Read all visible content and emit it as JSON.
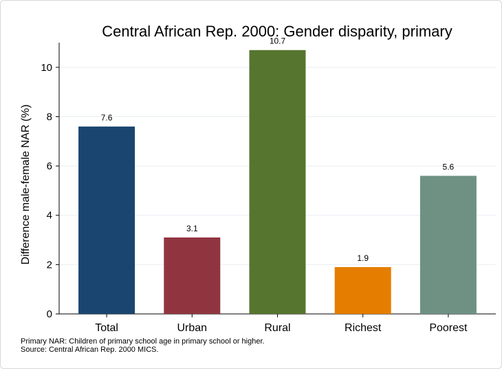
{
  "chart_data": {
    "type": "bar",
    "title": "Central African Rep. 2000: Gender disparity, primary",
    "ylabel": "Difference male-female NAR (%)",
    "xlabel": "",
    "categories": [
      "Total",
      "Urban",
      "Rural",
      "Richest",
      "Poorest"
    ],
    "values": [
      7.6,
      3.1,
      10.7,
      1.9,
      5.6
    ],
    "data_labels": [
      "7.6",
      "3.1",
      "10.7",
      "1.9",
      "5.6"
    ],
    "colors": [
      "#1a4570",
      "#903540",
      "#56752f",
      "#e57e00",
      "#6e9183"
    ],
    "ylim": [
      0,
      11
    ],
    "yticks": [
      0,
      2,
      4,
      6,
      8,
      10
    ],
    "grid": true,
    "legend": "none"
  },
  "notes": [
    "Primary NAR: Children of primary school age in primary school or higher.",
    "Source: Central African Rep. 2000 MICS."
  ]
}
